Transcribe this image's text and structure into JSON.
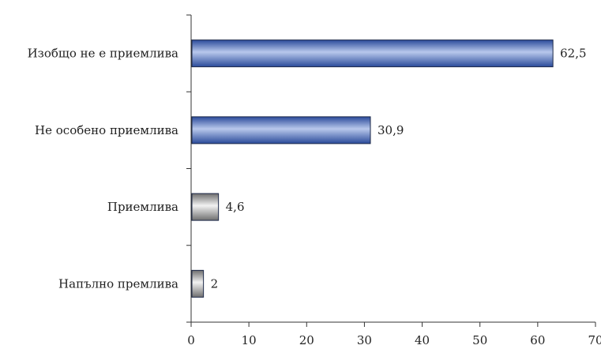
{
  "chart_data": {
    "type": "bar",
    "orientation": "horizontal",
    "categories": [
      "Изобщо не е приемлива",
      "Не особено приемлива",
      "Приемлива",
      "Напълно премлива"
    ],
    "values": [
      62.5,
      30.9,
      4.6,
      2
    ],
    "data_labels": [
      "62,5",
      "30,9",
      "4,6",
      "2"
    ],
    "bar_colors": [
      "blue",
      "blue",
      "gray",
      "gray"
    ],
    "xlim": [
      0,
      70
    ],
    "x_ticks": [
      0,
      10,
      20,
      30,
      40,
      50,
      60,
      70
    ],
    "x_tick_labels": [
      "0",
      "10",
      "20",
      "30",
      "40",
      "50",
      "60",
      "70"
    ],
    "title": "",
    "xlabel": "",
    "ylabel": "",
    "grid": false,
    "legend": "none"
  },
  "colors": {
    "blue_dark": "#2a4a9a",
    "blue_light": "#b8c8ec",
    "gray_dark": "#6e6e6e",
    "gray_light": "#f2f2f2"
  }
}
